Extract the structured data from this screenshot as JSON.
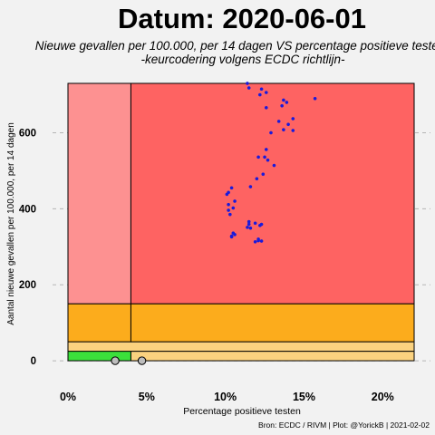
{
  "chart_data": {
    "type": "scatter",
    "title": "Datum: 2020-06-01",
    "subtitle_line1": "Nieuwe gevallen per 100.000, per 14 dagen  VS  percentage positieve testen",
    "subtitle_line2": "-keurcodering volgens ECDC richtlijn-",
    "xlabel": "Percentage positieve testen",
    "ylabel": "Aantal nieuwe gevallen per 100.000, per 14 dagen",
    "caption": "Bron: ECDC / RIVM | Plot: @YorickB |  2021-02-02",
    "xlim": [
      0,
      22
    ],
    "ylim": [
      -7,
      730
    ],
    "x_ticks": [
      0,
      5,
      10,
      15,
      20
    ],
    "x_tick_labels": [
      "0%",
      "5%",
      "10%",
      "15%",
      "20%"
    ],
    "y_ticks": [
      0,
      200,
      400,
      600
    ],
    "y_tick_labels": [
      "0",
      "200",
      "400",
      "600"
    ],
    "grid": "horizontal dashed",
    "zones": [
      {
        "x": [
          0,
          4
        ],
        "y": [
          0,
          25
        ],
        "color": "#3be03b"
      },
      {
        "x": [
          4,
          22
        ],
        "y": [
          0,
          25
        ],
        "color": "#fbd27f"
      },
      {
        "x": [
          0,
          22
        ],
        "y": [
          25,
          50
        ],
        "color": "#fbd27f"
      },
      {
        "x": [
          0,
          4
        ],
        "y": [
          50,
          150
        ],
        "color": "#fcac1c"
      },
      {
        "x": [
          4,
          22
        ],
        "y": [
          50,
          150
        ],
        "color": "#fcac1c"
      },
      {
        "x": [
          0,
          4
        ],
        "y": [
          150,
          730
        ],
        "color": "#fd9191"
      },
      {
        "x": [
          4,
          22
        ],
        "y": [
          150,
          730
        ],
        "color": "#fe6362"
      }
    ],
    "series": [
      {
        "color": "#1a1adb",
        "points": [
          [
            11.4,
            730
          ],
          [
            11.5,
            718
          ],
          [
            12.3,
            715
          ],
          [
            12.6,
            706
          ],
          [
            12.2,
            700
          ],
          [
            15.7,
            690
          ],
          [
            13.7,
            686
          ],
          [
            13.9,
            680
          ],
          [
            13.6,
            671
          ],
          [
            12.6,
            666
          ],
          [
            14.3,
            637
          ],
          [
            13.4,
            630
          ],
          [
            14.0,
            622
          ],
          [
            14.3,
            606
          ],
          [
            13.7,
            608
          ],
          [
            12.9,
            600
          ],
          [
            12.6,
            556
          ],
          [
            12.5,
            536
          ],
          [
            12.1,
            536
          ],
          [
            12.7,
            528
          ],
          [
            13.1,
            514
          ],
          [
            12.4,
            491
          ],
          [
            12.0,
            479
          ],
          [
            11.6,
            458
          ],
          [
            10.4,
            455
          ],
          [
            10.2,
            443
          ],
          [
            10.1,
            438
          ],
          [
            10.6,
            420
          ],
          [
            10.2,
            411
          ],
          [
            10.5,
            402
          ],
          [
            10.2,
            396
          ],
          [
            10.3,
            385
          ],
          [
            11.5,
            366
          ],
          [
            11.5,
            359
          ],
          [
            11.9,
            362
          ],
          [
            12.3,
            359
          ],
          [
            12.2,
            356
          ],
          [
            11.4,
            351
          ],
          [
            11.6,
            349
          ],
          [
            10.5,
            336
          ],
          [
            10.6,
            332
          ],
          [
            10.4,
            328
          ],
          [
            10.4,
            326
          ],
          [
            12.1,
            320
          ],
          [
            12.1,
            316
          ],
          [
            11.9,
            313
          ],
          [
            12.3,
            315
          ]
        ]
      },
      {
        "color": "#bdbdbd",
        "points": [
          [
            3.0,
            0
          ],
          [
            4.7,
            0
          ]
        ]
      }
    ]
  }
}
